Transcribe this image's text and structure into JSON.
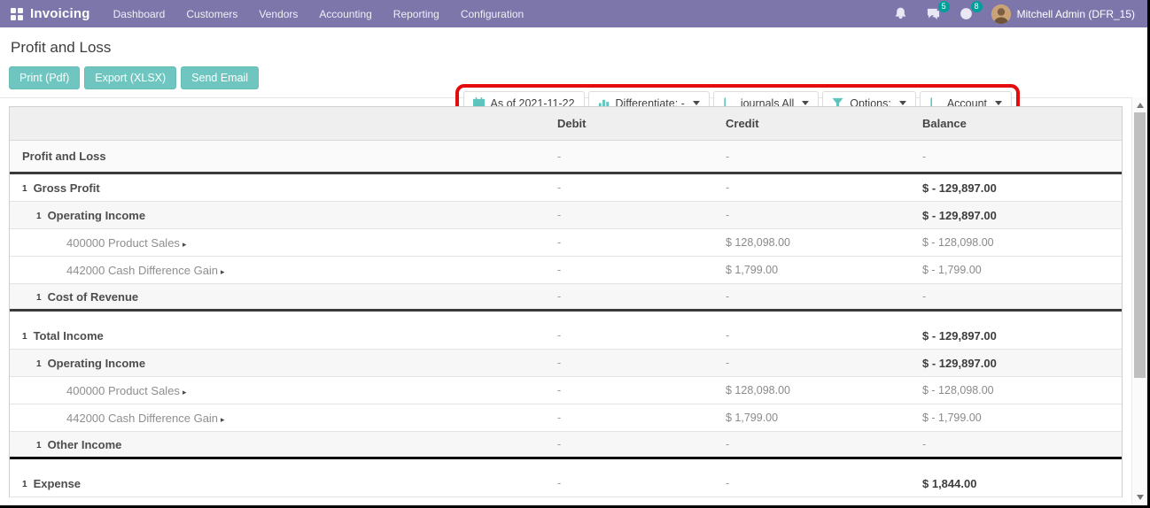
{
  "nav": {
    "app_name": "Invoicing",
    "menu_items": [
      "Dashboard",
      "Customers",
      "Vendors",
      "Accounting",
      "Reporting",
      "Configuration"
    ],
    "systray": {
      "messages_count": "5",
      "activities_count": "8",
      "user_name": "Mitchell Admin (DFR_15)"
    }
  },
  "page": {
    "title": "Profit and Loss",
    "action_buttons": [
      "Print (Pdf)",
      "Export (XLSX)",
      "Send Email"
    ],
    "filter_buttons": [
      {
        "name": "date-filter",
        "icon": "calendar-icon",
        "label": "As of 2021-11-22",
        "caret": false,
        "underline": "black-teal"
      },
      {
        "name": "differentiate-filter",
        "icon": "bar-chart-icon",
        "label": "Differentiate: -",
        "caret": true,
        "underline": "black"
      },
      {
        "name": "journals-filter",
        "icon": "book-icon",
        "label": "journals All",
        "caret": true
      },
      {
        "name": "options-filter",
        "icon": "filter-icon",
        "label": "Options:",
        "caret": true
      },
      {
        "name": "account-filter",
        "icon": "book-icon",
        "label": "Account",
        "caret": true
      }
    ]
  },
  "colors": {
    "nav_purple": "#7d76ab",
    "button_teal": "#6fc6c0",
    "badge_teal": "#00a09a",
    "annotation_red": "#e30b0b",
    "icon_teal": "#5ec4be"
  },
  "report_table": {
    "columns": [
      "Debit",
      "Credit",
      "Balance"
    ],
    "rows": [
      {
        "label": "Profit and Loss",
        "level": 0,
        "bold": true,
        "caret": false,
        "debit": "-",
        "credit": "-",
        "balance": "-",
        "balance_bold": false,
        "bg": "soft",
        "end": "dark",
        "tall": true
      },
      {
        "label": "Gross Profit",
        "level": 0,
        "bold": true,
        "caret": true,
        "debit": "-",
        "credit": "-",
        "balance": "$ - 129,897.00",
        "balance_bold": true
      },
      {
        "label": "Operating Income",
        "level": 1,
        "bold": true,
        "caret": true,
        "debit": "-",
        "credit": "-",
        "balance": "$ - 129,897.00",
        "balance_bold": true,
        "stripe": true
      },
      {
        "label": "400000 Product Sales",
        "level": 2,
        "account": true,
        "arrow": true,
        "debit": "-",
        "credit": "$ 128,098.00",
        "balance": "$ - 128,098.00",
        "balance_bold": false
      },
      {
        "label": "442000 Cash Difference Gain",
        "level": 2,
        "account": true,
        "arrow": true,
        "debit": "-",
        "credit": "$ 1,799.00",
        "balance": "$ - 1,799.00",
        "balance_bold": false
      },
      {
        "label": "Cost of Revenue",
        "level": 1,
        "bold": true,
        "caret": true,
        "debit": "-",
        "credit": "-",
        "balance": "-",
        "balance_bold": false,
        "stripe": true,
        "end": "dark"
      },
      {
        "spacer": true
      },
      {
        "label": "Total Income",
        "level": 0,
        "bold": true,
        "caret": true,
        "debit": "-",
        "credit": "-",
        "balance": "$ - 129,897.00",
        "balance_bold": true
      },
      {
        "label": "Operating Income",
        "level": 1,
        "bold": true,
        "caret": true,
        "debit": "-",
        "credit": "-",
        "balance": "$ - 129,897.00",
        "balance_bold": true,
        "stripe": true
      },
      {
        "label": "400000 Product Sales",
        "level": 2,
        "account": true,
        "arrow": true,
        "debit": "-",
        "credit": "$ 128,098.00",
        "balance": "$ - 128,098.00",
        "balance_bold": false
      },
      {
        "label": "442000 Cash Difference Gain",
        "level": 2,
        "account": true,
        "arrow": true,
        "debit": "-",
        "credit": "$ 1,799.00",
        "balance": "$ - 1,799.00",
        "balance_bold": false
      },
      {
        "label": "Other Income",
        "level": 1,
        "bold": true,
        "caret": true,
        "debit": "-",
        "credit": "-",
        "balance": "-",
        "balance_bold": false,
        "stripe": true,
        "end": "black"
      },
      {
        "spacer": true
      },
      {
        "label": "Expense",
        "level": 0,
        "bold": true,
        "caret": true,
        "debit": "-",
        "credit": "-",
        "balance": "$ 1,844.00",
        "balance_bold": true
      }
    ]
  }
}
